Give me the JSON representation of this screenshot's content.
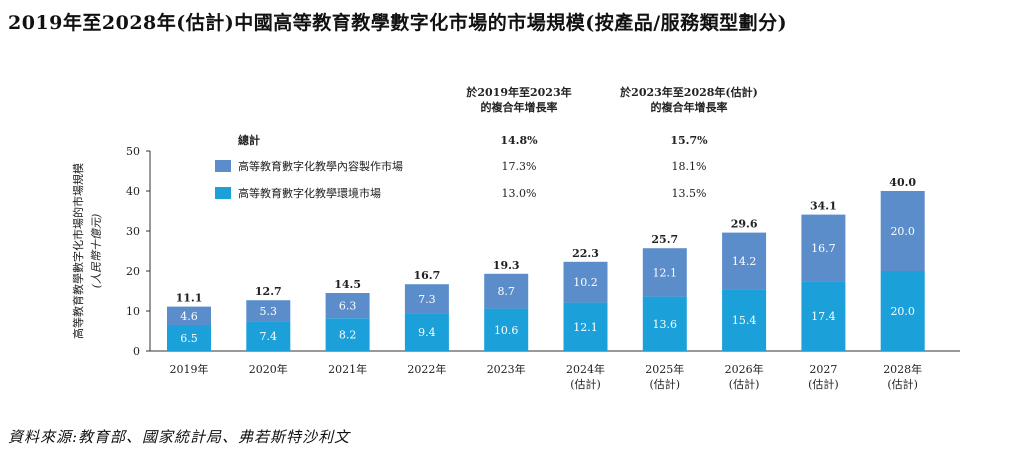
{
  "title": "2019年至2028年(估計)中國高等教育教學數字化市場的市場規模(按產品/服務類型劃分)",
  "source": "資料來源:教育部、國家統計局、弗若斯特沙利文",
  "chart_data": {
    "type": "bar",
    "stacked": true,
    "title": "2019年至2028年(估計)中國高等教育教學數字化市場的市場規模(按產品/服務類型劃分)",
    "ylabel": "高等教育教學數字化市場的市場規模",
    "ylabel_unit": "(人民幣十億元)",
    "ylim": [
      0,
      50
    ],
    "yticks": [
      0,
      10,
      20,
      30,
      40,
      50
    ],
    "categories": [
      [
        "2019年"
      ],
      [
        "2020年"
      ],
      [
        "2021年"
      ],
      [
        "2022年"
      ],
      [
        "2023年"
      ],
      [
        "2024年",
        "(估計)"
      ],
      [
        "2025年",
        "(估計)"
      ],
      [
        "2026年",
        "(估計)"
      ],
      [
        "2027",
        "(估計)"
      ],
      [
        "2028年",
        "(估計)"
      ]
    ],
    "series": [
      {
        "name": "高等教育數字化教學環境市場",
        "color": "#1ba0d9",
        "values": [
          6.5,
          7.4,
          8.2,
          9.4,
          10.6,
          12.1,
          13.6,
          15.4,
          17.4,
          20.0
        ]
      },
      {
        "name": "高等教育數字化教學內容製作市場",
        "color": "#5b8dcb",
        "values": [
          4.6,
          5.3,
          6.3,
          7.3,
          8.7,
          10.2,
          12.1,
          14.2,
          16.7,
          20.0
        ]
      }
    ],
    "totals": [
      11.1,
      12.7,
      14.5,
      16.7,
      19.3,
      22.3,
      25.7,
      29.6,
      34.1,
      40.0
    ],
    "cagr_headers": [
      [
        "於2019年至2023年",
        "的複合年增長率"
      ],
      [
        "於2023年至2028年(估計)",
        "的複合年增長率"
      ]
    ],
    "legend": [
      {
        "label": "總計",
        "cagr1": "14.8%",
        "cagr2": "15.7%"
      },
      {
        "label": "高等教育數字化教學內容製作市場",
        "cagr1": "17.3%",
        "cagr2": "18.1%",
        "color": "#5b8dcb"
      },
      {
        "label": "高等教育數字化教學環境市場",
        "cagr1": "13.0%",
        "cagr2": "13.5%",
        "color": "#1ba0d9"
      }
    ]
  }
}
